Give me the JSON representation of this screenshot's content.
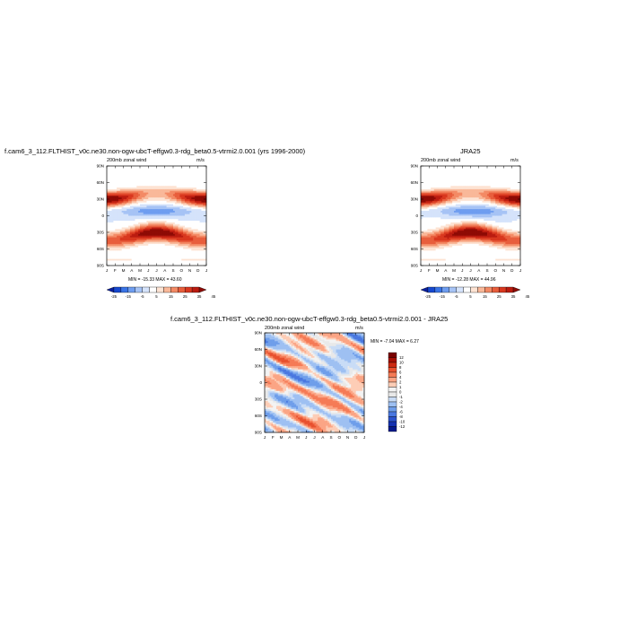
{
  "panels": [
    {
      "title": "f.cam6_3_112.FLTHIST_v0c.ne30.non-ogw-ubcT-effgw0.3-rdg_beta0.5-vtrmi2.0.001 (yrs 1996-2000)",
      "left_label": "200mb zonal wind",
      "right_label": "m/s",
      "stats": "MIN = -15.33  MAX = 43.60"
    },
    {
      "title": "JRA25",
      "left_label": "200mb zonal wind",
      "right_label": "m/s",
      "stats": "MIN = -12.28  MAX = 44.96"
    },
    {
      "title": "f.cam6_3_112.FLTHIST_v0c.ne30.non-ogw-ubcT-effgw0.3-rdg_beta0.5-vtrmi2.0.001 - JRA25",
      "left_label": "200mb zonal wind",
      "right_label": "m/s",
      "stats": "MIN =  -7.04  MAX =   6.27"
    }
  ],
  "chart_data": [
    {
      "type": "heatmap",
      "title": "f.cam6_3_112.FLTHIST_v0c.ne30.non-ogw-ubcT-effgw0.3-rdg_beta0.5-vtrmi2.0.001 (yrs 1996-2000)",
      "x_tick_labels": [
        "J",
        "F",
        "M",
        "A",
        "M",
        "J",
        "J",
        "A",
        "S",
        "O",
        "N",
        "D",
        "J"
      ],
      "y_tick_labels": [
        "90N",
        "60N",
        "30N",
        "0",
        "30S",
        "60S",
        "90S"
      ],
      "ylim": [
        -90,
        90
      ],
      "colorbar_labels": [
        "-25",
        "-15",
        "-5",
        "5",
        "15",
        "25",
        "35",
        "45"
      ],
      "colorbar_levels": [
        -25,
        -20,
        -15,
        -10,
        -5,
        0,
        5,
        10,
        15,
        20,
        25,
        30,
        35,
        40,
        45
      ],
      "min": -15.33,
      "max": 43.6,
      "units": "m/s"
    },
    {
      "type": "heatmap",
      "title": "JRA25",
      "x_tick_labels": [
        "J",
        "F",
        "M",
        "A",
        "M",
        "J",
        "J",
        "A",
        "S",
        "O",
        "N",
        "D",
        "J"
      ],
      "y_tick_labels": [
        "90N",
        "60N",
        "30N",
        "0",
        "30S",
        "60S",
        "90S"
      ],
      "ylim": [
        -90,
        90
      ],
      "colorbar_labels": [
        "-25",
        "-15",
        "-5",
        "5",
        "15",
        "25",
        "35",
        "45"
      ],
      "colorbar_levels": [
        -25,
        -20,
        -15,
        -10,
        -5,
        0,
        5,
        10,
        15,
        20,
        25,
        30,
        35,
        40,
        45
      ],
      "min": -12.28,
      "max": 44.96,
      "units": "m/s"
    },
    {
      "type": "heatmap",
      "title": "f.cam6_3_112.FLTHIST_v0c.ne30.non-ogw-ubcT-effgw0.3-rdg_beta0.5-vtrmi2.0.001 - JRA25",
      "x_tick_labels": [
        "J",
        "F",
        "M",
        "A",
        "M",
        "J",
        "J",
        "A",
        "S",
        "O",
        "N",
        "D",
        "J"
      ],
      "y_tick_labels": [
        "90N",
        "60N",
        "30N",
        "0",
        "30S",
        "60S",
        "90S"
      ],
      "ylim": [
        -90,
        90
      ],
      "colorbar_labels": [
        "12",
        "10",
        "8",
        "6",
        "4",
        "2",
        "1",
        "0",
        "-1",
        "-2",
        "-4",
        "-6",
        "-8",
        "-10",
        "-12"
      ],
      "min": -7.04,
      "max": 6.27,
      "units": "m/s"
    }
  ],
  "colors": {
    "abs_palette": [
      "#0a1f9e",
      "#1648cf",
      "#3a74e6",
      "#6e9df0",
      "#a6c3f5",
      "#d5e3fb",
      "#ffffff",
      "#fde3d3",
      "#f9b899",
      "#f38a65",
      "#e85e3c",
      "#d9381f",
      "#bb1c10",
      "#8e0b05"
    ],
    "diff_palette": [
      "#7a0000",
      "#a50f04",
      "#cc2a12",
      "#e8512f",
      "#f57b56",
      "#fba585",
      "#fdcdb6",
      "#f3f3f3",
      "#e9e9e9",
      "#c9dcf6",
      "#9ec0f2",
      "#6f9eea",
      "#4a78e0",
      "#2c52cc",
      "#1431b0",
      "#051a8c"
    ]
  }
}
